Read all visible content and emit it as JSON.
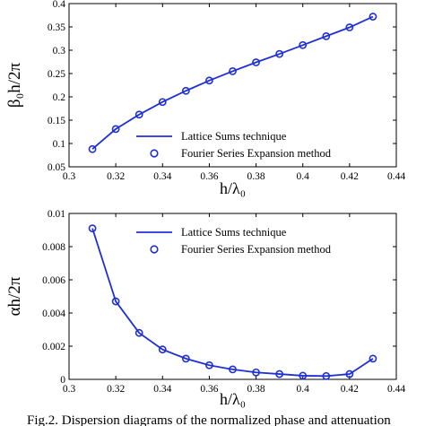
{
  "chart_data": [
    {
      "type": "line",
      "xlabel": "h/λ₀",
      "ylabel": "β₀h/2π",
      "xlim": [
        0.3,
        0.44
      ],
      "ylim": [
        0.05,
        0.4
      ],
      "x_ticks": [
        "0.3",
        "0.32",
        "0.34",
        "0.36",
        "0.38",
        "0.4",
        "0.42",
        "0.44"
      ],
      "y_ticks": [
        "0.05",
        "0.1",
        "0.15",
        "0.2",
        "0.25",
        "0.3",
        "0.35",
        "0.4"
      ],
      "legend_position": "bottom-right",
      "series": [
        {
          "name": "Lattice Sums technique",
          "style": "line",
          "color": "#1f2fd8",
          "x": [
            0.31,
            0.32,
            0.33,
            0.34,
            0.35,
            0.36,
            0.37,
            0.38,
            0.39,
            0.4,
            0.41,
            0.42,
            0.43
          ],
          "y": [
            0.088,
            0.131,
            0.162,
            0.189,
            0.213,
            0.235,
            0.255,
            0.274,
            0.292,
            0.311,
            0.33,
            0.349,
            0.372
          ]
        },
        {
          "name": "Fourier Series Expansion method",
          "style": "marker",
          "color": "#1f2fd8",
          "x": [
            0.31,
            0.32,
            0.33,
            0.34,
            0.35,
            0.36,
            0.37,
            0.38,
            0.39,
            0.4,
            0.41,
            0.42,
            0.43
          ],
          "y": [
            0.088,
            0.131,
            0.162,
            0.189,
            0.213,
            0.235,
            0.255,
            0.274,
            0.292,
            0.311,
            0.33,
            0.349,
            0.372
          ]
        }
      ]
    },
    {
      "type": "line",
      "xlabel": "h/λ₀",
      "ylabel": "αh/2π",
      "xlim": [
        0.3,
        0.44
      ],
      "ylim": [
        0,
        0.01
      ],
      "x_ticks": [
        "0.3",
        "0.32",
        "0.34",
        "0.36",
        "0.38",
        "0.4",
        "0.42",
        "0.44"
      ],
      "y_ticks": [
        "0",
        "0.002",
        "0.004",
        "0.006",
        "0.008",
        "0.01"
      ],
      "legend_position": "top-right",
      "series": [
        {
          "name": "Lattice Sums technique",
          "style": "line",
          "color": "#1f2fd8",
          "x": [
            0.31,
            0.32,
            0.33,
            0.34,
            0.35,
            0.36,
            0.37,
            0.38,
            0.39,
            0.4,
            0.41,
            0.42,
            0.43
          ],
          "y": [
            0.0091,
            0.0047,
            0.0028,
            0.0018,
            0.00125,
            0.00085,
            0.0006,
            0.00042,
            0.00032,
            0.00022,
            0.0002,
            0.00032,
            0.00125
          ]
        },
        {
          "name": "Fourier Series Expansion method",
          "style": "marker",
          "color": "#1f2fd8",
          "x": [
            0.31,
            0.32,
            0.33,
            0.34,
            0.35,
            0.36,
            0.37,
            0.38,
            0.39,
            0.4,
            0.41,
            0.42,
            0.43
          ],
          "y": [
            0.0091,
            0.0047,
            0.0028,
            0.0018,
            0.00125,
            0.00085,
            0.0006,
            0.00042,
            0.00032,
            0.00022,
            0.0002,
            0.00032,
            0.00125
          ]
        }
      ]
    }
  ],
  "caption": "Fig.2. Dispersion diagrams of the normalized phase and attenuation"
}
